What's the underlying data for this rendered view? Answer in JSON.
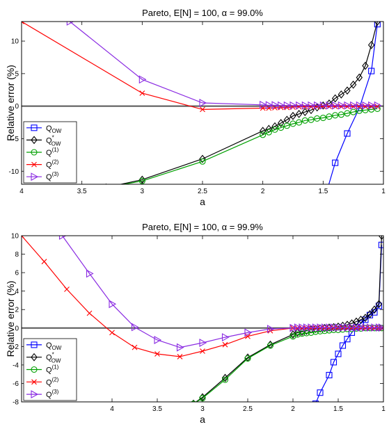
{
  "figure": {
    "background": "#ffffff"
  },
  "chart_data": [
    {
      "type": "line",
      "title": "Pareto, E[N] = 100, α = 99.0%",
      "xlabel": "a",
      "ylabel": "Relative error (%)",
      "x_reversed": true,
      "xlim": [
        1,
        4
      ],
      "ylim": [
        -12,
        13
      ],
      "xticks": [
        4,
        3.5,
        3,
        2.5,
        2,
        1.5,
        1
      ],
      "yticks": [
        -10,
        -5,
        0,
        5,
        10
      ],
      "zero_line": true,
      "grid": false,
      "legend_position": "bottom-left",
      "series": [
        {
          "name": "Q_OW",
          "legend_main": "Q",
          "legend_sub": "OW",
          "legend_sup": "",
          "color": "#0000ff",
          "marker": "square",
          "points": [
            [
              1.05,
              12.6
            ],
            [
              1.1,
              5.4
            ],
            [
              1.2,
              -0.3
            ],
            [
              1.3,
              -4.2
            ],
            [
              1.4,
              -8.7
            ],
            [
              1.5,
              -15
            ]
          ]
        },
        {
          "name": "Q*_OW",
          "legend_main": "Q",
          "legend_sub": "OW",
          "legend_sup": "*",
          "color": "#000000",
          "marker": "diamond",
          "points": [
            [
              1.05,
              13
            ],
            [
              1.1,
              9.4
            ],
            [
              1.15,
              6.2
            ],
            [
              1.2,
              4.4
            ],
            [
              1.25,
              3.3
            ],
            [
              1.3,
              2.4
            ],
            [
              1.35,
              1.8
            ],
            [
              1.4,
              1.2
            ],
            [
              1.45,
              0.4
            ],
            [
              1.5,
              0.1
            ],
            [
              1.55,
              -0.2
            ],
            [
              1.6,
              -0.6
            ],
            [
              1.65,
              -0.9
            ],
            [
              1.7,
              -1.2
            ],
            [
              1.75,
              -1.5
            ],
            [
              1.8,
              -2.1
            ],
            [
              1.85,
              -2.6
            ],
            [
              1.9,
              -3.1
            ],
            [
              1.95,
              -3.5
            ],
            [
              2,
              -3.8
            ],
            [
              2.5,
              -8.1
            ],
            [
              3,
              -11.3
            ],
            [
              3.3,
              -12.5
            ]
          ]
        },
        {
          "name": "Q(1)",
          "legend_main": "Q",
          "legend_sub": "",
          "legend_sup": "(1)",
          "color": "#00a000",
          "marker": "circle",
          "points": [
            [
              1.05,
              -0.4
            ],
            [
              1.1,
              -0.5
            ],
            [
              1.15,
              -0.6
            ],
            [
              1.2,
              -0.7
            ],
            [
              1.25,
              -0.9
            ],
            [
              1.3,
              -1.1
            ],
            [
              1.35,
              -1.3
            ],
            [
              1.4,
              -1.4
            ],
            [
              1.45,
              -1.6
            ],
            [
              1.5,
              -1.8
            ],
            [
              1.55,
              -1.9
            ],
            [
              1.6,
              -2.1
            ],
            [
              1.65,
              -2.2
            ],
            [
              1.7,
              -2.5
            ],
            [
              1.75,
              -2.7
            ],
            [
              1.8,
              -3
            ],
            [
              1.85,
              -3.3
            ],
            [
              1.9,
              -3.6
            ],
            [
              1.95,
              -4
            ],
            [
              2,
              -4.4
            ],
            [
              2.5,
              -8.5
            ],
            [
              3,
              -11.5
            ],
            [
              3.3,
              -12.5
            ]
          ]
        },
        {
          "name": "Q(2)",
          "legend_main": "Q",
          "legend_sub": "",
          "legend_sup": "(2)",
          "color": "#ff0000",
          "marker": "x",
          "points": [
            [
              1.05,
              -0.05
            ],
            [
              1.1,
              -0.05
            ],
            [
              1.15,
              -0.05
            ],
            [
              1.2,
              -0.05
            ],
            [
              1.25,
              -0.05
            ],
            [
              1.3,
              -0.05
            ],
            [
              1.35,
              -0.05
            ],
            [
              1.4,
              -0.05
            ],
            [
              1.45,
              -0.05
            ],
            [
              1.5,
              -0.05
            ],
            [
              1.55,
              -0.1
            ],
            [
              1.6,
              -0.1
            ],
            [
              1.65,
              -0.1
            ],
            [
              1.7,
              -0.1
            ],
            [
              1.75,
              -0.15
            ],
            [
              1.8,
              -0.2
            ],
            [
              1.85,
              -0.2
            ],
            [
              1.9,
              -0.25
            ],
            [
              1.95,
              -0.3
            ],
            [
              2,
              -0.3
            ],
            [
              2.5,
              -0.5
            ],
            [
              3,
              2
            ],
            [
              4,
              13
            ]
          ]
        },
        {
          "name": "Q(3)",
          "legend_main": "Q",
          "legend_sub": "",
          "legend_sup": "(3)",
          "color": "#8a2be2",
          "marker": "triangle-right",
          "points": [
            [
              1.05,
              0.1
            ],
            [
              1.1,
              0.1
            ],
            [
              1.15,
              0.1
            ],
            [
              1.2,
              0.1
            ],
            [
              1.25,
              0.1
            ],
            [
              1.3,
              0.1
            ],
            [
              1.35,
              0.1
            ],
            [
              1.4,
              0.1
            ],
            [
              1.45,
              0.1
            ],
            [
              1.5,
              0.1
            ],
            [
              1.55,
              0.1
            ],
            [
              1.6,
              0.1
            ],
            [
              1.65,
              0.1
            ],
            [
              1.7,
              0.1
            ],
            [
              1.75,
              0.1
            ],
            [
              1.8,
              0.1
            ],
            [
              1.85,
              0.1
            ],
            [
              1.9,
              0.15
            ],
            [
              1.95,
              0.15
            ],
            [
              2,
              0.2
            ],
            [
              2.5,
              0.5
            ],
            [
              3,
              4.1
            ],
            [
              3.6,
              13
            ]
          ]
        }
      ]
    },
    {
      "type": "line",
      "title": "Pareto, E[N] = 100, α = 99.9%",
      "xlabel": "a",
      "ylabel": "Relative error (%)",
      "x_reversed": true,
      "xlim": [
        1,
        5
      ],
      "ylim": [
        -8,
        10
      ],
      "xticks": [
        4,
        3.5,
        3,
        2.5,
        2,
        1.5,
        1
      ],
      "yticks": [
        -8,
        -6,
        -4,
        -2,
        0,
        2,
        4,
        6,
        8,
        10
      ],
      "zero_line": true,
      "grid": false,
      "legend_position": "bottom-left",
      "series": [
        {
          "name": "Q_OW",
          "legend_main": "Q",
          "legend_sub": "OW",
          "legend_sup": "",
          "color": "#0000ff",
          "marker": "square",
          "points": [
            [
              1.02,
              9
            ],
            [
              1.05,
              2.4
            ],
            [
              1.1,
              1.7
            ],
            [
              1.15,
              1.4
            ],
            [
              1.2,
              0.9
            ],
            [
              1.25,
              0.5
            ],
            [
              1.3,
              0.1
            ],
            [
              1.35,
              -0.5
            ],
            [
              1.4,
              -1.2
            ],
            [
              1.45,
              -1.9
            ],
            [
              1.5,
              -2.8
            ],
            [
              1.55,
              -3.7
            ],
            [
              1.6,
              -5.1
            ],
            [
              1.7,
              -7
            ],
            [
              1.75,
              -8.2
            ]
          ]
        },
        {
          "name": "Q*_OW",
          "legend_main": "Q",
          "legend_sub": "OW",
          "legend_sup": "*",
          "color": "#000000",
          "marker": "diamond",
          "points": [
            [
              1.02,
              10
            ],
            [
              1.05,
              2.6
            ],
            [
              1.1,
              2
            ],
            [
              1.15,
              1.5
            ],
            [
              1.2,
              1.1
            ],
            [
              1.25,
              0.9
            ],
            [
              1.3,
              0.7
            ],
            [
              1.35,
              0.5
            ],
            [
              1.4,
              0.35
            ],
            [
              1.45,
              0.25
            ],
            [
              1.5,
              0.15
            ],
            [
              1.55,
              0.1
            ],
            [
              1.6,
              0.05
            ],
            [
              1.65,
              0
            ],
            [
              1.7,
              -0.05
            ],
            [
              1.75,
              -0.1
            ],
            [
              1.8,
              -0.15
            ],
            [
              1.85,
              -0.3
            ],
            [
              1.9,
              -0.4
            ],
            [
              1.95,
              -0.5
            ],
            [
              2,
              -0.7
            ],
            [
              2.25,
              -1.8
            ],
            [
              2.5,
              -3.2
            ],
            [
              2.75,
              -5.4
            ],
            [
              3,
              -7.5
            ],
            [
              3.1,
              -8.2
            ]
          ]
        },
        {
          "name": "Q(1)",
          "legend_main": "Q",
          "legend_sub": "",
          "legend_sup": "(1)",
          "color": "#00a000",
          "marker": "circle",
          "points": [
            [
              1.02,
              0
            ],
            [
              1.05,
              0
            ],
            [
              1.1,
              0
            ],
            [
              1.15,
              0
            ],
            [
              1.2,
              0
            ],
            [
              1.25,
              -0.05
            ],
            [
              1.3,
              -0.05
            ],
            [
              1.35,
              -0.1
            ],
            [
              1.4,
              -0.1
            ],
            [
              1.45,
              -0.15
            ],
            [
              1.5,
              -0.2
            ],
            [
              1.55,
              -0.2
            ],
            [
              1.6,
              -0.25
            ],
            [
              1.65,
              -0.3
            ],
            [
              1.7,
              -0.35
            ],
            [
              1.75,
              -0.4
            ],
            [
              1.8,
              -0.5
            ],
            [
              1.85,
              -0.55
            ],
            [
              1.9,
              -0.6
            ],
            [
              1.95,
              -0.7
            ],
            [
              2,
              -0.9
            ],
            [
              2.25,
              -1.9
            ],
            [
              2.5,
              -3.3
            ],
            [
              2.75,
              -5.6
            ],
            [
              3,
              -7.6
            ],
            [
              3.1,
              -8.2
            ]
          ]
        },
        {
          "name": "Q(2)",
          "legend_main": "Q",
          "legend_sub": "",
          "legend_sup": "(2)",
          "color": "#ff0000",
          "marker": "x",
          "points": [
            [
              1.02,
              0
            ],
            [
              1.05,
              0
            ],
            [
              1.1,
              0
            ],
            [
              1.15,
              0
            ],
            [
              1.2,
              0
            ],
            [
              1.25,
              0
            ],
            [
              1.3,
              0
            ],
            [
              1.35,
              0
            ],
            [
              1.4,
              0
            ],
            [
              1.45,
              0
            ],
            [
              1.5,
              0
            ],
            [
              1.55,
              0
            ],
            [
              1.6,
              0
            ],
            [
              1.65,
              0
            ],
            [
              1.7,
              0
            ],
            [
              1.75,
              0
            ],
            [
              1.8,
              0
            ],
            [
              1.85,
              0
            ],
            [
              1.9,
              0
            ],
            [
              1.95,
              0
            ],
            [
              2,
              0
            ],
            [
              2.25,
              -0.3
            ],
            [
              2.5,
              -0.9
            ],
            [
              2.75,
              -1.8
            ],
            [
              3,
              -2.5
            ],
            [
              3.25,
              -3.1
            ],
            [
              3.5,
              -2.8
            ],
            [
              3.75,
              -2.1
            ],
            [
              4,
              -0.5
            ],
            [
              4.25,
              1.6
            ],
            [
              4.5,
              4.2
            ],
            [
              4.75,
              7.2
            ],
            [
              5,
              10
            ]
          ]
        },
        {
          "name": "Q(3)",
          "legend_main": "Q",
          "legend_sub": "",
          "legend_sup": "(3)",
          "color": "#8a2be2",
          "marker": "triangle-right",
          "points": [
            [
              1.02,
              0.05
            ],
            [
              1.05,
              0.05
            ],
            [
              1.1,
              0.05
            ],
            [
              1.15,
              0.05
            ],
            [
              1.2,
              0.05
            ],
            [
              1.25,
              0.05
            ],
            [
              1.3,
              0.05
            ],
            [
              1.35,
              0.05
            ],
            [
              1.4,
              0.05
            ],
            [
              1.45,
              0.05
            ],
            [
              1.5,
              0.05
            ],
            [
              1.55,
              0.05
            ],
            [
              1.6,
              0.05
            ],
            [
              1.65,
              0.05
            ],
            [
              1.7,
              0.05
            ],
            [
              1.75,
              0.05
            ],
            [
              1.8,
              0.05
            ],
            [
              1.85,
              0.05
            ],
            [
              1.9,
              0.05
            ],
            [
              1.95,
              0.05
            ],
            [
              2,
              0
            ],
            [
              2.25,
              -0.1
            ],
            [
              2.5,
              -0.5
            ],
            [
              2.75,
              -1
            ],
            [
              3,
              -1.6
            ],
            [
              3.25,
              -2.1
            ],
            [
              3.5,
              -1.3
            ],
            [
              3.75,
              0.1
            ],
            [
              4,
              2.6
            ],
            [
              4.25,
              5.9
            ],
            [
              4.55,
              10
            ]
          ]
        }
      ]
    }
  ]
}
